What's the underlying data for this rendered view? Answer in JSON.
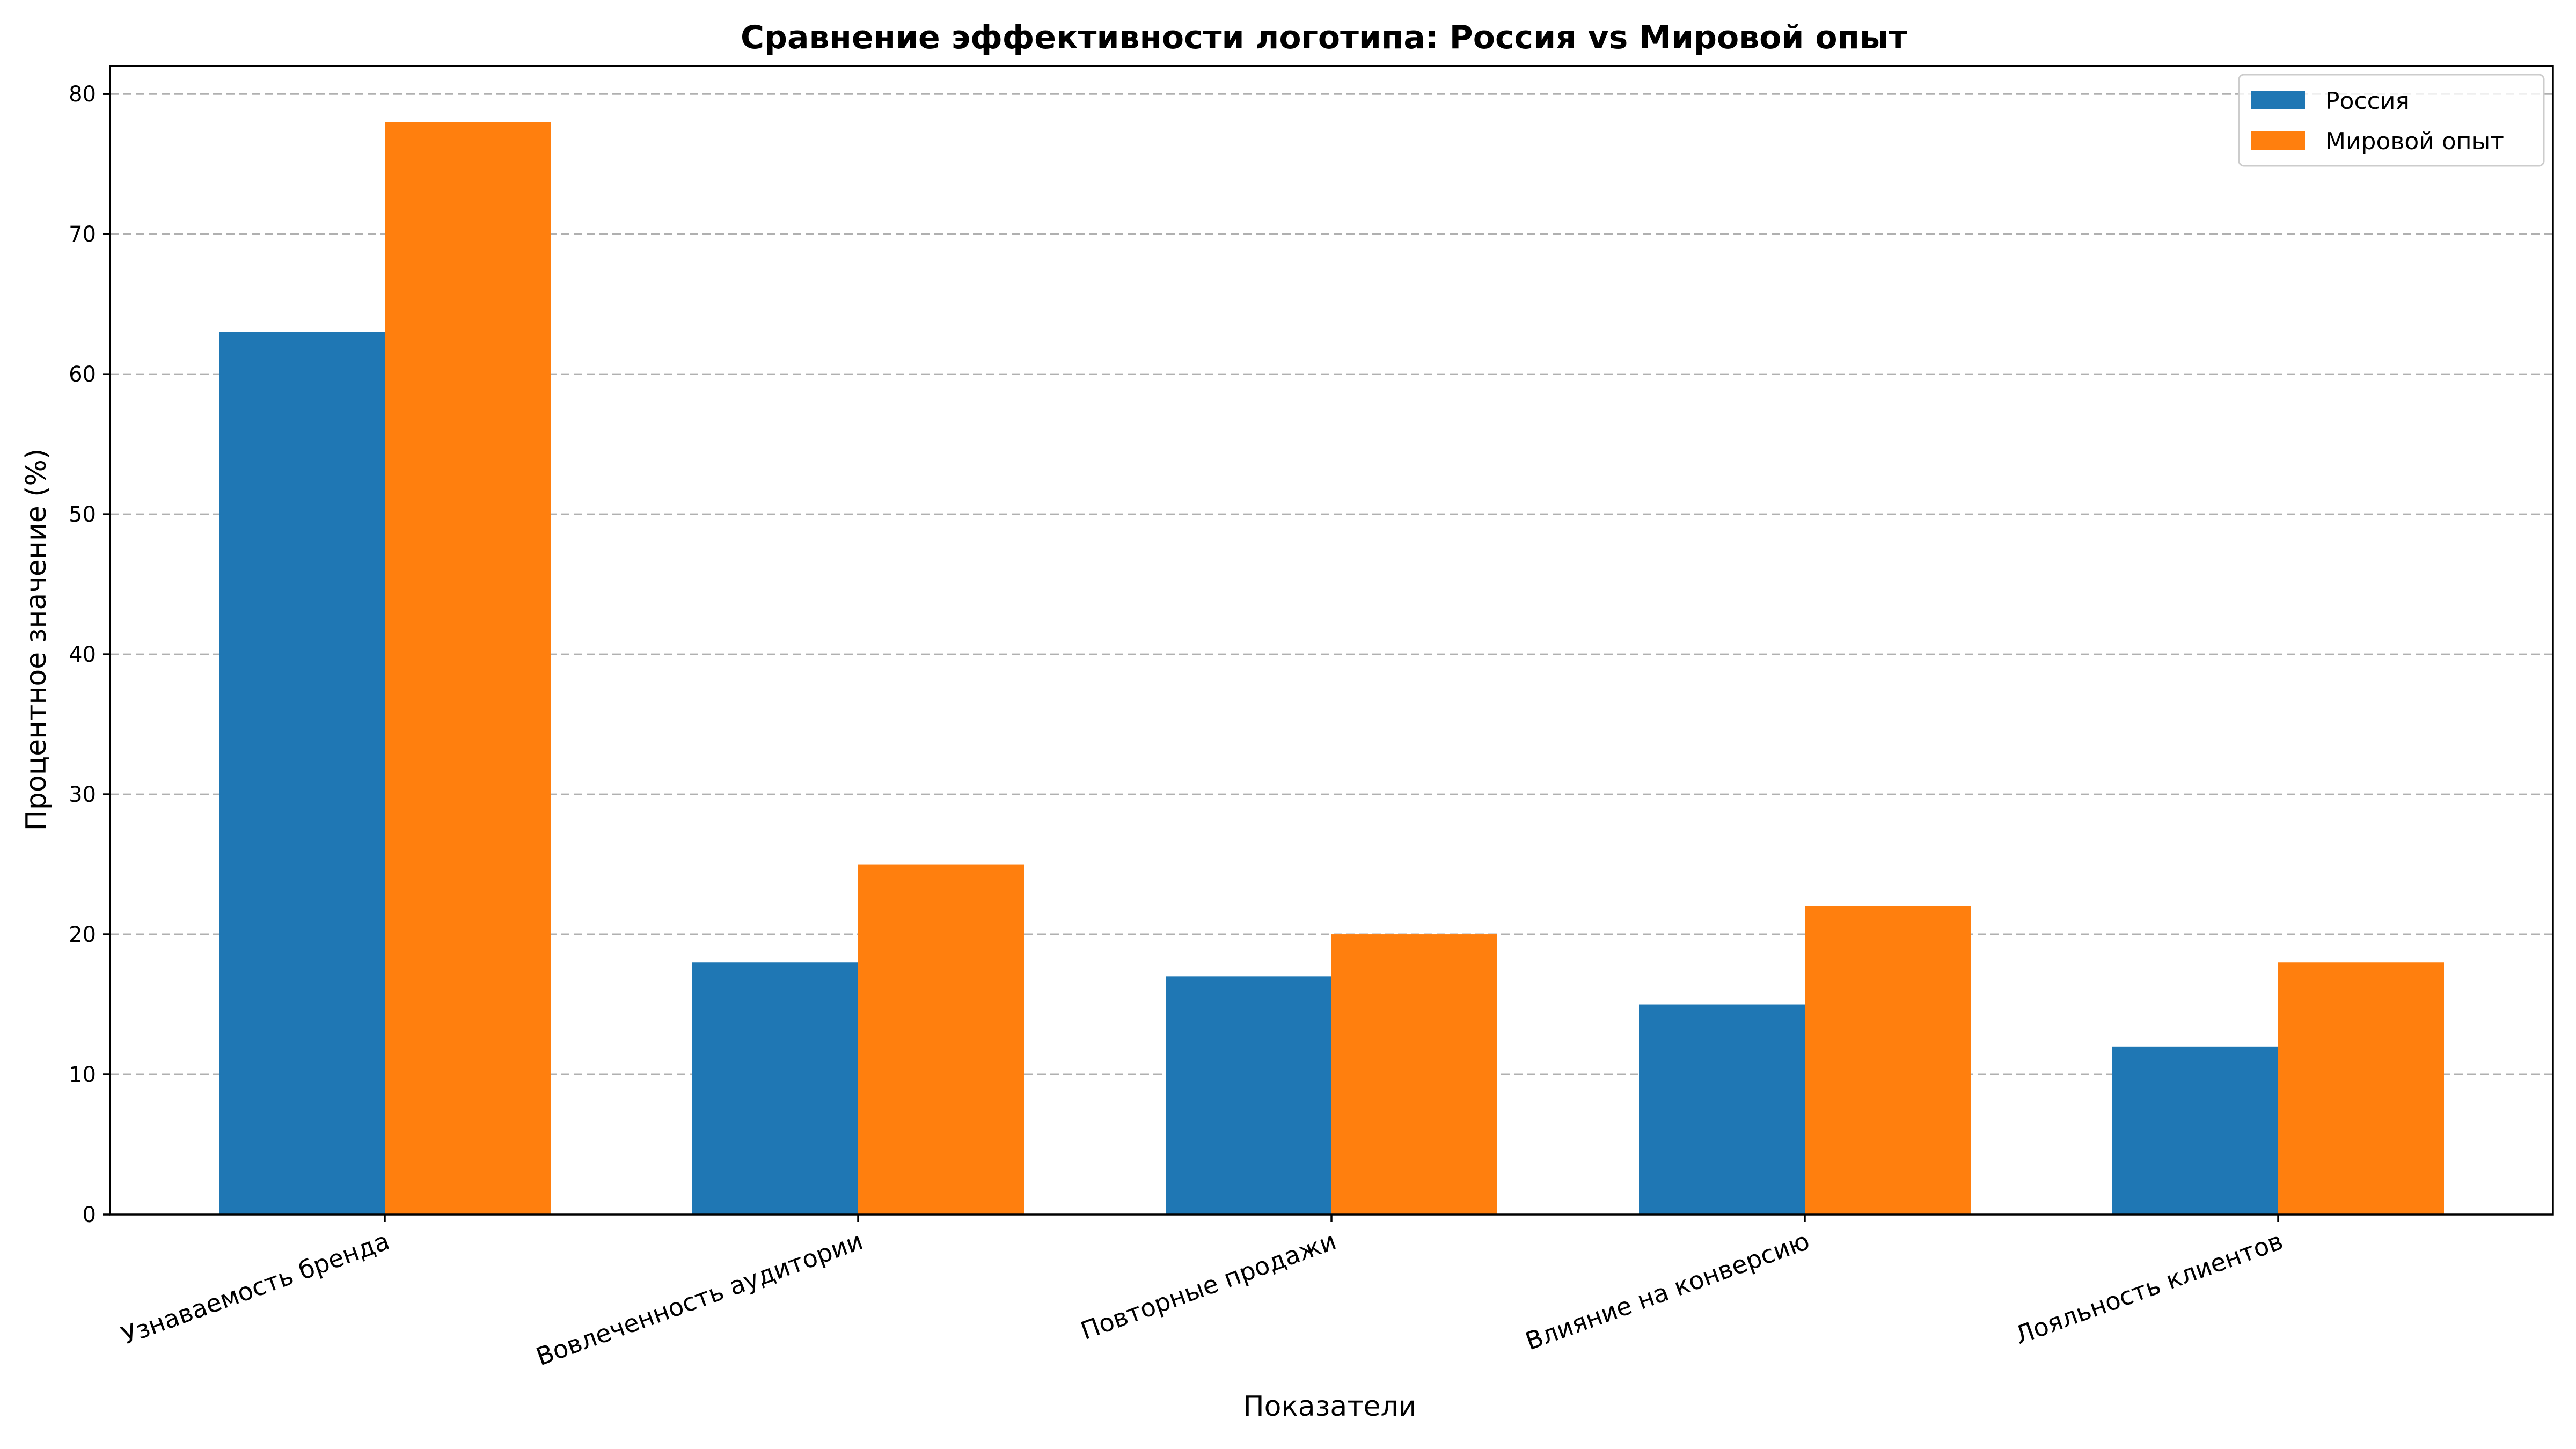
{
  "chart_data": {
    "type": "bar",
    "title": "Сравнение эффективности логотипа: Россия vs Мировой опыт",
    "xlabel": "Показатели",
    "ylabel": "Процентное значение (%)",
    "categories": [
      "Узнаваемость бренда",
      "Вовлеченность аудитории",
      "Повторные продажи",
      "Влияние на конверсию",
      "Лояльность клиентов"
    ],
    "series": [
      {
        "name": "Россия",
        "color": "#1f77b4",
        "values": [
          63,
          18,
          17,
          15,
          12
        ]
      },
      {
        "name": "Мировой опыт",
        "color": "#ff7f0e",
        "values": [
          78,
          25,
          20,
          22,
          18
        ]
      }
    ],
    "ylim": [
      0,
      82
    ],
    "yticks": [
      0,
      10,
      20,
      30,
      40,
      50,
      60,
      70,
      80
    ],
    "grid": "y-dashed",
    "legend": "top-right"
  }
}
